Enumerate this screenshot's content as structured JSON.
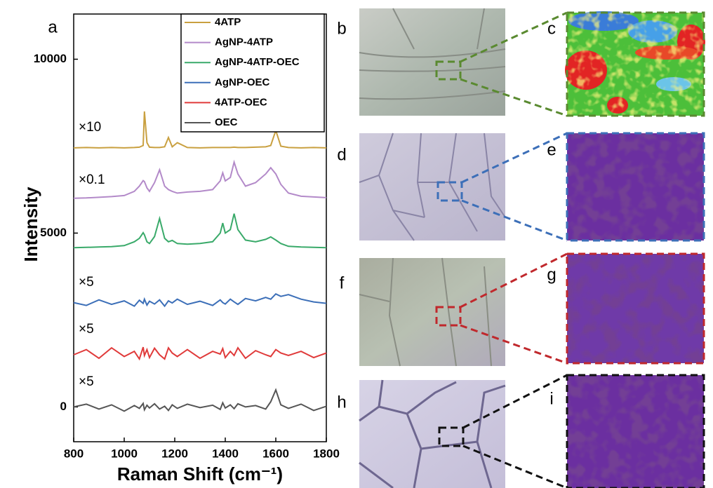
{
  "chart_data": {
    "type": "line",
    "xlabel": "Raman Shift (cm⁻¹)",
    "ylabel": "Intensity",
    "x": [
      800,
      850,
      900,
      950,
      1000,
      1040,
      1060,
      1075,
      1080,
      1090,
      1100,
      1120,
      1140,
      1160,
      1175,
      1190,
      1210,
      1250,
      1300,
      1350,
      1380,
      1390,
      1400,
      1420,
      1435,
      1450,
      1480,
      1520,
      1560,
      1580,
      1600,
      1620,
      1650,
      1700,
      1750,
      1800
    ],
    "xlim": [
      800,
      1800
    ],
    "xticks": [
      800,
      1000,
      1200,
      1400,
      1600,
      1800
    ],
    "ylim": [
      -1000,
      11300
    ],
    "yticks": [
      0,
      5000,
      10000
    ],
    "legend": "upper right",
    "annotations": [
      "×10",
      "×0.1",
      "×5",
      "×5",
      "×5"
    ],
    "series": [
      {
        "name": "4ATP",
        "color": "#c9a040",
        "values": [
          7450,
          7460,
          7450,
          7460,
          7450,
          7460,
          7470,
          7520,
          8500,
          7600,
          7470,
          7460,
          7460,
          7480,
          7750,
          7480,
          7600,
          7460,
          7450,
          7460,
          7460,
          7460,
          7460,
          7460,
          7470,
          7460,
          7460,
          7470,
          7480,
          7520,
          7950,
          7500,
          7460,
          7450,
          7460,
          7450
        ]
      },
      {
        "name": "AgNP-4ATP",
        "color": "#b38ac9",
        "values": [
          6000,
          6010,
          6030,
          6050,
          6080,
          6200,
          6350,
          6510,
          6480,
          6300,
          6200,
          6450,
          6820,
          6350,
          6250,
          6200,
          6150,
          6180,
          6200,
          6250,
          6500,
          6730,
          6500,
          6600,
          7040,
          6700,
          6350,
          6450,
          6700,
          6880,
          6700,
          6400,
          6150,
          6060,
          6040,
          6020
        ]
      },
      {
        "name": "AgNP-4ATP-OEC",
        "color": "#3aaa6a",
        "values": [
          4580,
          4590,
          4600,
          4610,
          4640,
          4750,
          4850,
          5010,
          4950,
          4750,
          4700,
          4900,
          5420,
          4850,
          4750,
          4790,
          4700,
          4680,
          4700,
          4750,
          5000,
          5290,
          5000,
          5100,
          5560,
          5100,
          4800,
          4750,
          4820,
          4890,
          4800,
          4700,
          4620,
          4600,
          4590,
          4580
        ]
      },
      {
        "name": "AgNP-OEC",
        "color": "#3c6fb8",
        "values": [
          3000,
          2920,
          3080,
          2950,
          3050,
          2900,
          3070,
          2980,
          3100,
          2930,
          3040,
          2960,
          3080,
          2900,
          3050,
          2990,
          3100,
          2950,
          3040,
          2920,
          3080,
          3000,
          2960,
          3100,
          3020,
          2950,
          3120,
          3050,
          3150,
          3100,
          3250,
          3180,
          3230,
          3100,
          3020,
          2980
        ]
      },
      {
        "name": "4ATP-OEC",
        "color": "#e03a3a",
        "values": [
          1500,
          1650,
          1400,
          1700,
          1450,
          1600,
          1380,
          1720,
          1480,
          1650,
          1420,
          1690,
          1500,
          1380,
          1700,
          1550,
          1450,
          1650,
          1400,
          1600,
          1520,
          1680,
          1420,
          1600,
          1480,
          1700,
          1400,
          1620,
          1500,
          1450,
          1650,
          1550,
          1480,
          1600,
          1420,
          1550
        ]
      },
      {
        "name": "OEC",
        "color": "#555555",
        "values": [
          0,
          80,
          -60,
          60,
          -120,
          40,
          -40,
          100,
          -80,
          50,
          -30,
          90,
          -60,
          20,
          -100,
          60,
          -40,
          80,
          -20,
          50,
          -70,
          120,
          -30,
          60,
          -50,
          90,
          0,
          40,
          -60,
          150,
          490,
          60,
          -40,
          80,
          -100,
          20
        ]
      }
    ]
  },
  "panel_labels": [
    "a",
    "b",
    "c",
    "d",
    "e",
    "f",
    "g",
    "h",
    "i"
  ]
}
